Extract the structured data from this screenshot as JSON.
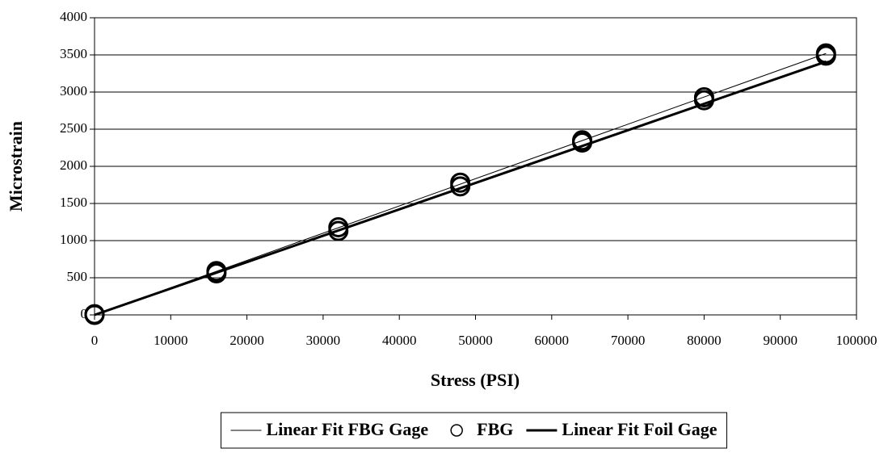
{
  "chart_data": {
    "type": "scatter",
    "x_label": "Stress (PSI)",
    "y_label": "Microstrain",
    "xlim": [
      0,
      100000
    ],
    "xticks": [
      0,
      10000,
      20000,
      30000,
      40000,
      50000,
      60000,
      70000,
      80000,
      90000,
      100000
    ],
    "ylim": [
      0,
      4000
    ],
    "yticks": [
      0,
      500,
      1000,
      1500,
      2000,
      2500,
      3000,
      3500,
      4000
    ],
    "grid": true,
    "legend": "bottom",
    "series": [
      {
        "name": "Linear Fit FBG Gage",
        "mode": "lines",
        "line_width": 1,
        "color": "#000000",
        "x": [
          0,
          96000
        ],
        "values": [
          0,
          3520
        ]
      },
      {
        "name": "FBG",
        "mode": "markers",
        "color": "#000000",
        "x": [
          0,
          0,
          16000,
          16000,
          32000,
          32000,
          48000,
          48000,
          64000,
          64000,
          80000,
          80000,
          96000,
          96000
        ],
        "values": [
          0,
          10,
          590,
          560,
          1180,
          1130,
          1780,
          1730,
          2350,
          2320,
          2930,
          2890,
          3520,
          3490
        ]
      },
      {
        "name": "Linear Fit Foil Gage",
        "mode": "lines",
        "line_width": 3,
        "color": "#000000",
        "x": [
          0,
          96000
        ],
        "values": [
          0,
          3410
        ]
      }
    ]
  }
}
